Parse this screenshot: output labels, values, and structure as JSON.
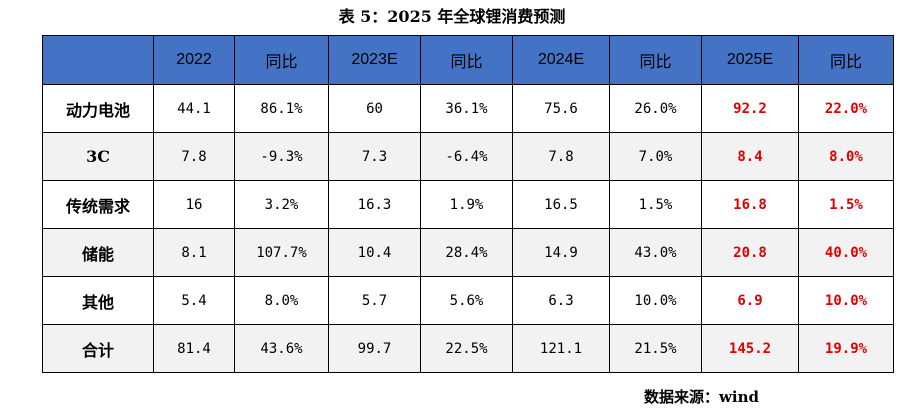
{
  "caption": "表 5：2025 年全球锂消费预测",
  "header": [
    "",
    "2022",
    "同比",
    "2023E",
    "同比",
    "2024E",
    "同比",
    "2025E",
    "同比"
  ],
  "rows": [
    {
      "label": "动力电池",
      "cells": [
        "44.1",
        "86.1%",
        "60",
        "36.1%",
        "75.6",
        "26.0%",
        "92.2",
        "22.0%"
      ]
    },
    {
      "label": "3C",
      "cells": [
        "7.8",
        "-9.3%",
        "7.3",
        "-6.4%",
        "7.8",
        "7.0%",
        "8.4",
        "8.0%"
      ]
    },
    {
      "label": "传统需求",
      "cells": [
        "16",
        "3.2%",
        "16.3",
        "1.9%",
        "16.5",
        "1.5%",
        "16.8",
        "1.5%"
      ]
    },
    {
      "label": "储能",
      "cells": [
        "8.1",
        "107.7%",
        "10.4",
        "28.4%",
        "14.9",
        "43.0%",
        "20.8",
        "40.0%"
      ]
    },
    {
      "label": "其他",
      "cells": [
        "5.4",
        "8.0%",
        "5.7",
        "5.6%",
        "6.3",
        "10.0%",
        "6.9",
        "10.0%"
      ]
    },
    {
      "label": "合计",
      "cells": [
        "81.4",
        "43.6%",
        "99.7",
        "22.5%",
        "121.1",
        "21.5%",
        "145.2",
        "19.9%"
      ]
    }
  ],
  "colors": {
    "header_bg": "#4472c4",
    "highlight_text": "#e00000",
    "row_shade": "#f2f2f2"
  },
  "source": "数据来源：wind"
}
